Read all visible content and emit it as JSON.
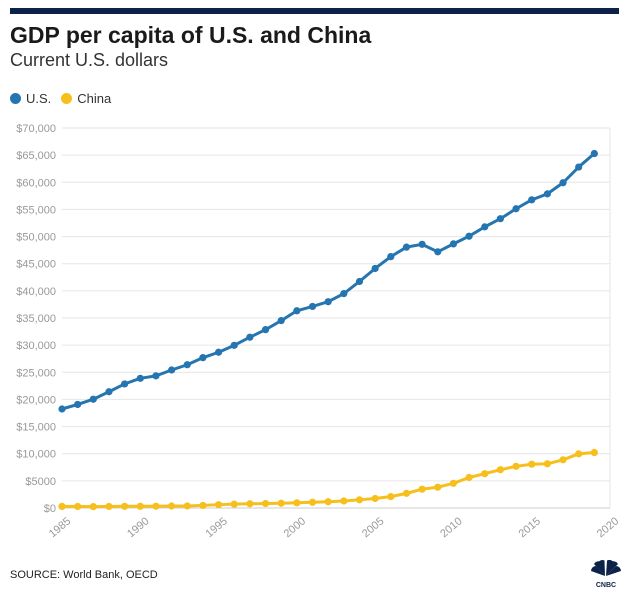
{
  "header": {
    "title": "GDP per capita of U.S. and China",
    "subtitle": "Current U.S. dollars"
  },
  "footer": {
    "source": "SOURCE: World Bank, OECD",
    "logo_icon": "cnbc-peacock-logo-icon",
    "logo_text": "CNBC"
  },
  "colors": {
    "us": "#2475b0",
    "china": "#f7bf1c",
    "top_bar": "#0c2249",
    "grid": "#e6e6e6",
    "tick_label": "#999999"
  },
  "chart_data": {
    "type": "line",
    "title": "GDP per capita of U.S. and China",
    "subtitle": "Current U.S. dollars",
    "xlabel": "",
    "ylabel": "",
    "xlim": [
      1985,
      2020
    ],
    "ylim": [
      0,
      70000
    ],
    "grid": true,
    "legend_position": "top-left",
    "x_ticks": [
      1985,
      1990,
      1995,
      2000,
      2005,
      2010,
      2015,
      2020
    ],
    "y_ticks": [
      0,
      5000,
      10000,
      15000,
      20000,
      25000,
      30000,
      35000,
      40000,
      45000,
      50000,
      55000,
      60000,
      65000,
      70000
    ],
    "x_tick_labels": [
      "1985",
      "1990",
      "1995",
      "2000",
      "2005",
      "2010",
      "2015",
      "2020"
    ],
    "y_tick_labels": [
      "$0",
      "$5000",
      "$10,000",
      "$15,000",
      "$20,000",
      "$25,000",
      "$30,000",
      "$35,000",
      "$40,000",
      "$45,000",
      "$50,000",
      "$55,000",
      "$60,000",
      "$65,000",
      "$70,000"
    ],
    "x": [
      1985,
      1986,
      1987,
      1988,
      1989,
      1990,
      1991,
      1992,
      1993,
      1994,
      1995,
      1996,
      1997,
      1998,
      1999,
      2000,
      2001,
      2002,
      2003,
      2004,
      2005,
      2006,
      2007,
      2008,
      2009,
      2010,
      2011,
      2012,
      2013,
      2014,
      2015,
      2016,
      2017,
      2018,
      2019
    ],
    "series": [
      {
        "name": "U.S.",
        "color": "#2475b0",
        "values": [
          18237,
          19071,
          20039,
          21417,
          22857,
          23889,
          24342,
          25419,
          26387,
          27695,
          28691,
          29968,
          31459,
          32854,
          34516,
          36330,
          37134,
          37998,
          39490,
          41725,
          44123,
          46302,
          48050,
          48570,
          47195,
          48651,
          50066,
          51784,
          53291,
          55124,
          56763,
          57867,
          59915,
          62805,
          65298
        ]
      },
      {
        "name": "China",
        "color": "#f7bf1c",
        "values": [
          294,
          281,
          252,
          284,
          311,
          318,
          333,
          366,
          377,
          473,
          610,
          709,
          782,
          829,
          873,
          959,
          1053,
          1149,
          1289,
          1509,
          1753,
          2099,
          2694,
          3468,
          3832,
          4550,
          5618,
          6317,
          7051,
          7679,
          8067,
          8148,
          8879,
          9977,
          10217
        ]
      }
    ]
  }
}
